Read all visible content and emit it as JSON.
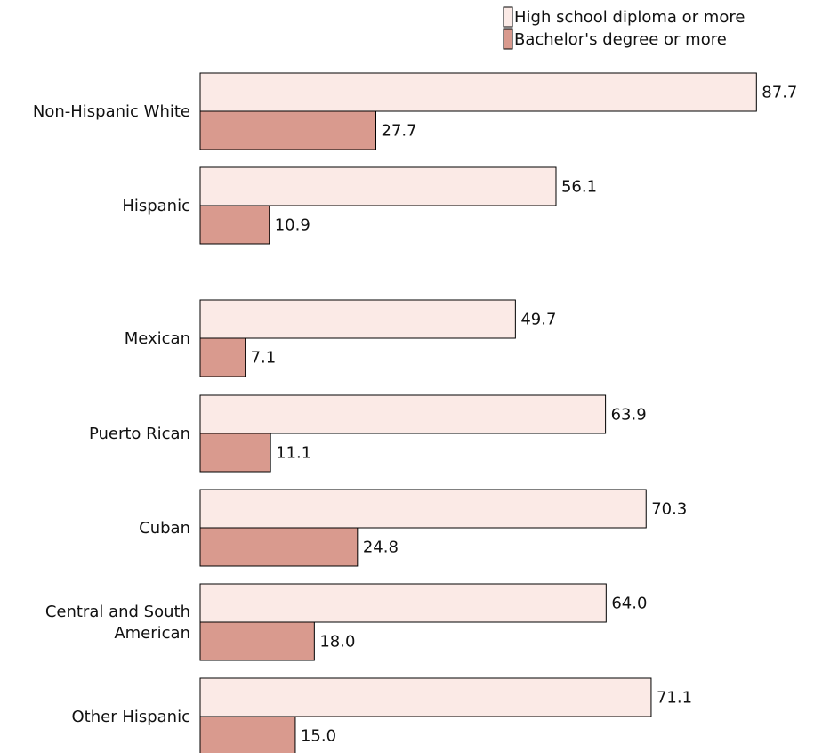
{
  "chart_data": {
    "type": "bar",
    "orientation": "horizontal",
    "categories": [
      "Non-Hispanic White",
      "Hispanic",
      "Mexican",
      "Puerto Rican",
      "Cuban",
      "Central and South American",
      "Other Hispanic"
    ],
    "category_lines": [
      [
        "Non-Hispanic White"
      ],
      [
        "Hispanic"
      ],
      [
        "Mexican"
      ],
      [
        "Puerto Rican"
      ],
      [
        "Cuban"
      ],
      [
        "Central and South",
        "American"
      ],
      [
        "Other Hispanic"
      ]
    ],
    "series": [
      {
        "name": "High school diploma or more",
        "color": "#fbeae6",
        "values": [
          87.7,
          56.1,
          49.7,
          63.9,
          70.3,
          64.0,
          71.1
        ],
        "labels": [
          "87.7",
          "56.1",
          "49.7",
          "63.9",
          "70.3",
          "64.0",
          "71.1"
        ]
      },
      {
        "name": "Bachelor's degree or more",
        "color": "#d99a8e",
        "values": [
          27.7,
          10.9,
          7.1,
          11.1,
          24.8,
          18.0,
          15.0
        ],
        "labels": [
          "27.7",
          "10.9",
          "7.1",
          "11.1",
          "24.8",
          "18.0",
          "15.0"
        ]
      }
    ],
    "xlim": [
      0,
      100
    ],
    "grid": false,
    "legend_position": "top-right"
  }
}
